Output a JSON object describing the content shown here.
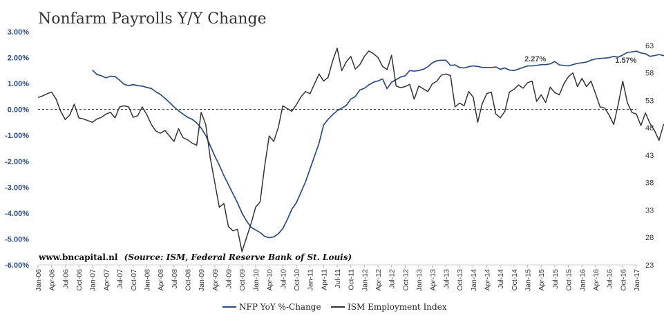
{
  "chart_data": {
    "type": "line",
    "title": "Nonfarm Payrolls Y/Y Change",
    "source_site": "www.bncapital.nl",
    "source_note": "(Source: ISM, Federal Reserve Bank of St. Louis)",
    "xlabel": "",
    "ylabel_left": "",
    "ylabel_right": "",
    "x_ticks": [
      "Jan-06",
      "Apr-06",
      "Jul-06",
      "Oct-06",
      "Jan-07",
      "Apr-07",
      "Jul-07",
      "Oct-07",
      "Jan-08",
      "Apr-08",
      "Jul-08",
      "Oct-08",
      "Jan-09",
      "Apr-09",
      "Jul-09",
      "Oct-09",
      "Jan-10",
      "Apr-10",
      "Jul-10",
      "Oct-10",
      "Jan-11",
      "Apr-11",
      "Jul-11",
      "Oct-11",
      "Jan-12",
      "Apr-12",
      "Jul-12",
      "Oct-12",
      "Jan-13",
      "Apr-13",
      "Jul-13",
      "Oct-13",
      "Jan-14",
      "Apr-14",
      "Jul-14",
      "Oct-14",
      "Jan-15",
      "Apr-15",
      "Jul-15",
      "Oct-15",
      "Jan-16",
      "Apr-16",
      "Jul-16",
      "Oct-16",
      "Jan-17"
    ],
    "y_left": {
      "ylim": [
        -6.0,
        3.0
      ],
      "ticks": [
        "3.00%",
        "2.00%",
        "1.00%",
        "0.00%",
        "-1.00%",
        "-2.00%",
        "-3.00%",
        "-4.00%",
        "-5.00%",
        "-6.00%"
      ]
    },
    "y_right": {
      "ylim": [
        23,
        65.5
      ],
      "ticks": [
        "63",
        "58",
        "53",
        "48",
        "43",
        "38",
        "33",
        "28",
        "23"
      ]
    },
    "reference_line": {
      "value": 0,
      "axis": "left",
      "style": "dashed"
    },
    "legend_position": "bottom-center",
    "series": [
      {
        "name": "NFP YoY %-Change",
        "axis": "left",
        "color": "#2b4a80",
        "start": "Jan-07",
        "values": [
          1.52,
          1.35,
          1.3,
          1.22,
          1.28,
          1.27,
          1.13,
          0.97,
          0.92,
          0.96,
          0.92,
          0.9,
          0.85,
          0.81,
          0.68,
          0.58,
          0.43,
          0.27,
          0.1,
          -0.05,
          -0.18,
          -0.3,
          -0.38,
          -0.52,
          -0.72,
          -1.0,
          -1.4,
          -1.8,
          -2.15,
          -2.55,
          -2.9,
          -3.25,
          -3.6,
          -4.0,
          -4.3,
          -4.55,
          -4.65,
          -4.75,
          -4.9,
          -4.95,
          -4.92,
          -4.8,
          -4.6,
          -4.25,
          -3.85,
          -3.6,
          -3.2,
          -2.8,
          -2.3,
          -1.8,
          -1.3,
          -0.6,
          -0.38,
          -0.2,
          -0.05,
          0.05,
          0.15,
          0.4,
          0.5,
          0.75,
          0.82,
          0.95,
          1.05,
          1.1,
          1.18,
          0.8,
          1.05,
          1.15,
          1.25,
          1.3,
          1.5,
          1.48,
          1.5,
          1.55,
          1.65,
          1.8,
          1.88,
          1.9,
          1.9,
          1.7,
          1.72,
          1.62,
          1.6,
          1.65,
          1.68,
          1.66,
          1.62,
          1.62,
          1.62,
          1.64,
          1.55,
          1.6,
          1.52,
          1.5,
          1.56,
          1.62,
          1.68,
          1.68,
          1.7,
          1.73,
          1.73,
          1.76,
          1.85,
          1.72,
          1.7,
          1.68,
          1.73,
          1.78,
          1.8,
          1.83,
          1.9,
          1.95,
          1.97,
          1.98,
          2.0,
          2.05,
          2.02,
          2.1,
          2.2,
          2.22,
          2.25,
          2.18,
          2.15,
          2.05,
          2.08,
          2.12,
          2.08,
          2.05,
          2.0,
          1.97,
          1.9,
          2.0,
          1.94,
          1.95,
          1.9,
          1.88,
          1.87,
          1.95,
          1.88,
          1.72,
          1.7,
          1.72,
          1.75,
          1.76,
          1.88,
          1.72,
          1.65,
          1.62,
          1.57,
          1.62,
          1.66
        ]
      },
      {
        "name": "ISM Employment Index",
        "axis": "right",
        "color": "#333333",
        "start": "Jan-06",
        "values": [
          53.5,
          53.8,
          54.2,
          54.5,
          53.2,
          51.0,
          49.5,
          50.3,
          52.3,
          49.8,
          49.6,
          49.3,
          49.0,
          49.6,
          49.9,
          50.5,
          50.8,
          49.8,
          51.8,
          52.0,
          51.8,
          49.9,
          50.2,
          51.8,
          50.4,
          48.6,
          47.4,
          47.0,
          47.5,
          46.5,
          45.5,
          47.8,
          46.2,
          45.8,
          45.2,
          44.8,
          50.8,
          48.6,
          42.5,
          38.0,
          33.5,
          34.2,
          30.0,
          29.2,
          29.5,
          25.4,
          28.0,
          30.5,
          33.5,
          34.5,
          41.0,
          46.5,
          45.5,
          48.0,
          52.0,
          51.5,
          51.0,
          52.2,
          53.6,
          54.6,
          54.2,
          56.0,
          57.8,
          56.5,
          57.2,
          60.2,
          62.5,
          58.4,
          60.0,
          61.0,
          58.7,
          59.5,
          61.0,
          62.0,
          61.5,
          60.8,
          59.2,
          58.6,
          61.2,
          55.6,
          55.3,
          55.5,
          55.9,
          53.2,
          55.6,
          55.1,
          54.6,
          56.0,
          56.5,
          57.6,
          57.8,
          57.5,
          51.8,
          52.5,
          52.0,
          54.6,
          53.6,
          49.0,
          52.4,
          54.2,
          54.5,
          50.5,
          49.8,
          51.0,
          54.5,
          55.0,
          55.8,
          55.2,
          56.2,
          56.5,
          52.8,
          54.0,
          52.6,
          55.4,
          54.4,
          54.0,
          56.0,
          57.3,
          58.0,
          55.5,
          57.0,
          55.5,
          56.5,
          54.2,
          51.8,
          51.6,
          50.3,
          48.6,
          52.3,
          56.5,
          52.6,
          50.8,
          50.5,
          48.4,
          50.7,
          48.8,
          47.5,
          45.7,
          48.6,
          48.3,
          49.3,
          49.1,
          50.7,
          50.2,
          49.3,
          48.4,
          49.7,
          52.9,
          52.3,
          53.0,
          56.1
        ]
      }
    ],
    "annotations": [
      {
        "text": "2.27%",
        "series": "NFP YoY %-Change",
        "at": "Mar-15"
      },
      {
        "text": "1.57%",
        "series": "NFP YoY %-Change",
        "at": "Nov-16"
      }
    ]
  }
}
